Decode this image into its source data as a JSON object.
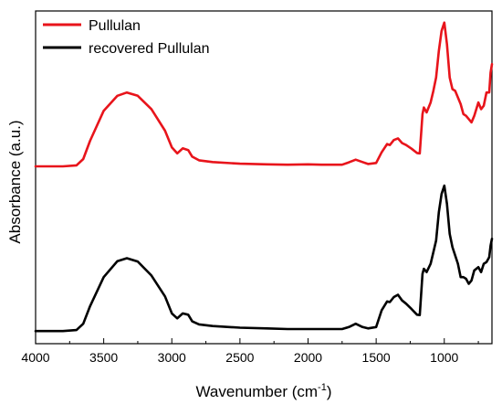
{
  "chart_data": {
    "type": "line",
    "xlabel": "Wavenumber (cm",
    "xlabel_sup": "-1",
    "xlabel_end": ")",
    "ylabel": "Absorbance (a.u.)",
    "xlim": [
      4000,
      650
    ],
    "x_reversed": true,
    "x_ticks": [
      4000,
      3500,
      3000,
      2500,
      2000,
      1500,
      1000
    ],
    "y_tick_labels_shown": false,
    "ylim": [
      0,
      1
    ],
    "legend_position": "top-left",
    "grid": false,
    "series": [
      {
        "name": "Pullulan",
        "color": "#e8141b",
        "points": [
          [
            4000,
            0.533
          ],
          [
            3800,
            0.533
          ],
          [
            3700,
            0.536
          ],
          [
            3650,
            0.555
          ],
          [
            3600,
            0.61
          ],
          [
            3500,
            0.7
          ],
          [
            3400,
            0.745
          ],
          [
            3330,
            0.755
          ],
          [
            3250,
            0.745
          ],
          [
            3150,
            0.705
          ],
          [
            3050,
            0.64
          ],
          [
            3000,
            0.59
          ],
          [
            2960,
            0.572
          ],
          [
            2920,
            0.587
          ],
          [
            2880,
            0.582
          ],
          [
            2850,
            0.562
          ],
          [
            2800,
            0.551
          ],
          [
            2700,
            0.546
          ],
          [
            2500,
            0.541
          ],
          [
            2300,
            0.539
          ],
          [
            2150,
            0.538
          ],
          [
            2000,
            0.539
          ],
          [
            1900,
            0.538
          ],
          [
            1750,
            0.538
          ],
          [
            1700,
            0.545
          ],
          [
            1650,
            0.553
          ],
          [
            1600,
            0.546
          ],
          [
            1560,
            0.54
          ],
          [
            1500,
            0.543
          ],
          [
            1460,
            0.575
          ],
          [
            1420,
            0.6
          ],
          [
            1400,
            0.597
          ],
          [
            1370,
            0.612
          ],
          [
            1340,
            0.617
          ],
          [
            1310,
            0.603
          ],
          [
            1280,
            0.597
          ],
          [
            1240,
            0.586
          ],
          [
            1200,
            0.573
          ],
          [
            1180,
            0.572
          ],
          [
            1160,
            0.69
          ],
          [
            1150,
            0.71
          ],
          [
            1130,
            0.695
          ],
          [
            1100,
            0.725
          ],
          [
            1080,
            0.76
          ],
          [
            1060,
            0.8
          ],
          [
            1040,
            0.88
          ],
          [
            1020,
            0.94
          ],
          [
            1000,
            0.965
          ],
          [
            980,
            0.9
          ],
          [
            960,
            0.8
          ],
          [
            940,
            0.765
          ],
          [
            920,
            0.76
          ],
          [
            900,
            0.74
          ],
          [
            880,
            0.72
          ],
          [
            860,
            0.69
          ],
          [
            840,
            0.685
          ],
          [
            820,
            0.675
          ],
          [
            800,
            0.665
          ],
          [
            780,
            0.685
          ],
          [
            750,
            0.725
          ],
          [
            730,
            0.705
          ],
          [
            710,
            0.715
          ],
          [
            690,
            0.755
          ],
          [
            670,
            0.755
          ],
          [
            660,
            0.815
          ],
          [
            650,
            0.84
          ]
        ]
      },
      {
        "name": "recovered Pullulan",
        "color": "#000000",
        "points": [
          [
            4000,
            0.038
          ],
          [
            3800,
            0.038
          ],
          [
            3700,
            0.041
          ],
          [
            3650,
            0.06
          ],
          [
            3600,
            0.113
          ],
          [
            3500,
            0.2
          ],
          [
            3400,
            0.248
          ],
          [
            3330,
            0.257
          ],
          [
            3250,
            0.247
          ],
          [
            3150,
            0.205
          ],
          [
            3050,
            0.142
          ],
          [
            3000,
            0.091
          ],
          [
            2960,
            0.076
          ],
          [
            2920,
            0.091
          ],
          [
            2880,
            0.087
          ],
          [
            2850,
            0.067
          ],
          [
            2800,
            0.058
          ],
          [
            2700,
            0.053
          ],
          [
            2500,
            0.048
          ],
          [
            2300,
            0.046
          ],
          [
            2150,
            0.044
          ],
          [
            2000,
            0.044
          ],
          [
            1900,
            0.044
          ],
          [
            1750,
            0.044
          ],
          [
            1700,
            0.05
          ],
          [
            1650,
            0.06
          ],
          [
            1600,
            0.05
          ],
          [
            1560,
            0.046
          ],
          [
            1500,
            0.05
          ],
          [
            1460,
            0.1
          ],
          [
            1420,
            0.127
          ],
          [
            1400,
            0.125
          ],
          [
            1370,
            0.14
          ],
          [
            1340,
            0.147
          ],
          [
            1310,
            0.13
          ],
          [
            1280,
            0.12
          ],
          [
            1240,
            0.104
          ],
          [
            1200,
            0.087
          ],
          [
            1180,
            0.086
          ],
          [
            1160,
            0.21
          ],
          [
            1150,
            0.225
          ],
          [
            1130,
            0.215
          ],
          [
            1100,
            0.24
          ],
          [
            1080,
            0.275
          ],
          [
            1060,
            0.31
          ],
          [
            1040,
            0.395
          ],
          [
            1020,
            0.45
          ],
          [
            1000,
            0.475
          ],
          [
            980,
            0.42
          ],
          [
            960,
            0.33
          ],
          [
            940,
            0.29
          ],
          [
            920,
            0.265
          ],
          [
            900,
            0.24
          ],
          [
            880,
            0.2
          ],
          [
            860,
            0.2
          ],
          [
            840,
            0.195
          ],
          [
            820,
            0.18
          ],
          [
            800,
            0.19
          ],
          [
            780,
            0.22
          ],
          [
            750,
            0.23
          ],
          [
            730,
            0.215
          ],
          [
            710,
            0.24
          ],
          [
            690,
            0.245
          ],
          [
            670,
            0.26
          ],
          [
            660,
            0.295
          ],
          [
            650,
            0.315
          ]
        ]
      }
    ]
  }
}
